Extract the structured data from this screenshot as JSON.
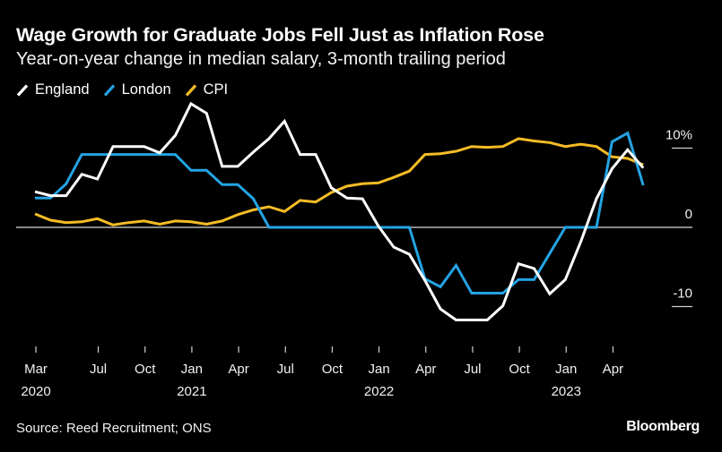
{
  "header": {
    "title": "Wage Growth for Graduate Jobs Fell Just as Inflation Rose",
    "subtitle": "Year-on-year change in median salary, 3-month trailing period"
  },
  "legend": [
    {
      "label": "England",
      "color": "#ffffff"
    },
    {
      "label": "London",
      "color": "#24a3e3"
    },
    {
      "label": "CPI",
      "color": "#f4bc25"
    }
  ],
  "footer": {
    "source": "Source: Reed Recruitment; ONS",
    "brand": "Bloomberg"
  },
  "chart_data": {
    "type": "line",
    "title": "Wage Growth for Graduate Jobs Fell Just as Inflation Rose",
    "subtitle": "Year-on-year change in median salary, 3-month trailing period",
    "xlabel": "",
    "ylabel": "",
    "ylim": [
      -15,
      13
    ],
    "yticks": [
      {
        "value": 10,
        "label": "10%"
      },
      {
        "value": 0,
        "label": "0"
      },
      {
        "value": -10,
        "label": "-10"
      }
    ],
    "xticks": [
      {
        "month_index": 0,
        "label": "Mar",
        "year": "2020"
      },
      {
        "month_index": 4,
        "label": "Jul",
        "year": ""
      },
      {
        "month_index": 7,
        "label": "Oct",
        "year": ""
      },
      {
        "month_index": 10,
        "label": "Jan",
        "year": "2021"
      },
      {
        "month_index": 13,
        "label": "Apr",
        "year": ""
      },
      {
        "month_index": 16,
        "label": "Jul",
        "year": ""
      },
      {
        "month_index": 19,
        "label": "Oct",
        "year": ""
      },
      {
        "month_index": 22,
        "label": "Jan",
        "year": "2022"
      },
      {
        "month_index": 25,
        "label": "Apr",
        "year": ""
      },
      {
        "month_index": 28,
        "label": "Jul",
        "year": ""
      },
      {
        "month_index": 31,
        "label": "Oct",
        "year": ""
      },
      {
        "month_index": 34,
        "label": "Jan",
        "year": "2023"
      },
      {
        "month_index": 37,
        "label": "Apr",
        "year": ""
      }
    ],
    "x": [
      "2020-03",
      "2020-04",
      "2020-05",
      "2020-06",
      "2020-07",
      "2020-08",
      "2020-09",
      "2020-10",
      "2020-11",
      "2020-12",
      "2021-01",
      "2021-02",
      "2021-03",
      "2021-04",
      "2021-05",
      "2021-06",
      "2021-07",
      "2021-08",
      "2021-09",
      "2021-10",
      "2021-11",
      "2021-12",
      "2022-01",
      "2022-02",
      "2022-03",
      "2022-04",
      "2022-05",
      "2022-06",
      "2022-07",
      "2022-08",
      "2022-09",
      "2022-10",
      "2022-11",
      "2022-12",
      "2023-01",
      "2023-02",
      "2023-03",
      "2023-04",
      "2023-05",
      "2023-06"
    ],
    "series": [
      {
        "name": "England",
        "color": "#ffffff",
        "values": [
          4.5,
          4.0,
          4.0,
          6.7,
          6.1,
          10.2,
          10.2,
          10.2,
          9.4,
          11.6,
          15.6,
          14.4,
          7.7,
          7.7,
          9.5,
          11.2,
          13.4,
          9.2,
          9.2,
          5.0,
          3.7,
          3.6,
          0.2,
          -2.5,
          -3.4,
          -6.7,
          -10.3,
          -11.7,
          -11.7,
          -11.7,
          -9.9,
          -4.6,
          -5.2,
          -8.4,
          -6.6,
          -1.8,
          3.6,
          7.4,
          9.8,
          7.5
        ]
      },
      {
        "name": "London",
        "color": "#24a3e3",
        "values": [
          3.7,
          3.7,
          5.5,
          9.2,
          9.2,
          9.2,
          9.2,
          9.2,
          9.2,
          9.2,
          7.2,
          7.2,
          5.4,
          5.4,
          3.6,
          0,
          0,
          0,
          0,
          0,
          0,
          0,
          0,
          0,
          0,
          -6.5,
          -7.5,
          -4.8,
          -8.3,
          -8.3,
          -8.3,
          -6.6,
          -6.6,
          -3.3,
          0,
          0,
          0,
          10.8,
          11.9,
          5.3
        ]
      },
      {
        "name": "CPI",
        "color": "#f4bc25",
        "values": [
          1.7,
          0.9,
          0.6,
          0.7,
          1.1,
          0.3,
          0.6,
          0.8,
          0.4,
          0.8,
          0.7,
          0.4,
          0.8,
          1.6,
          2.2,
          2.6,
          2.0,
          3.4,
          3.2,
          4.4,
          5.2,
          5.5,
          5.6,
          6.3,
          7.1,
          9.2,
          9.3,
          9.6,
          10.2,
          10.1,
          10.2,
          11.2,
          10.9,
          10.7,
          10.2,
          10.5,
          10.2,
          8.9,
          8.7,
          7.9
        ]
      }
    ],
    "grid": "y-ticks-only",
    "legend_position": "top-left"
  }
}
